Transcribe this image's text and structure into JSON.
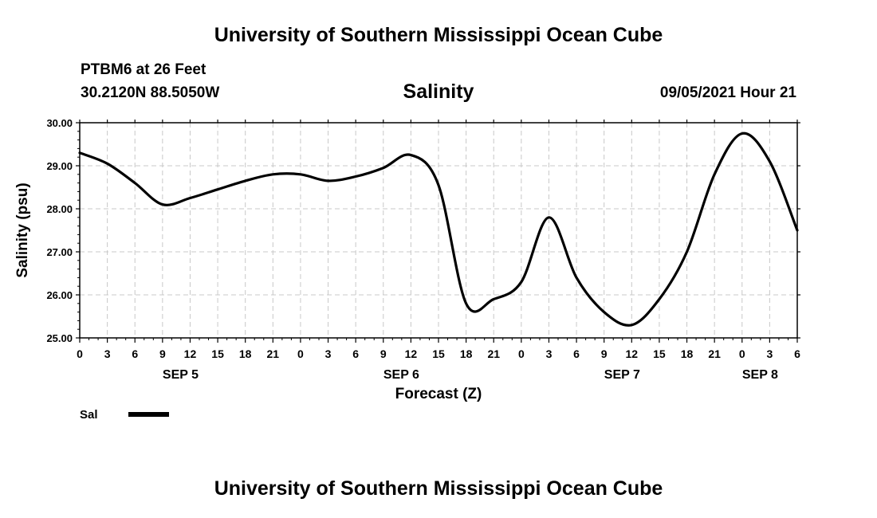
{
  "header": {
    "title_top": "University of Southern Mississippi Ocean Cube",
    "station": "PTBM6 at 26 Feet",
    "coordinates": "30.2120N  88.5050W",
    "datetime": "09/05/2021 Hour 21"
  },
  "footer": {
    "title_bottom": "University of Southern Mississippi Ocean Cube"
  },
  "chart_data": {
    "type": "line",
    "title": "Salinity",
    "xlabel": "Forecast (Z)",
    "ylabel": "Salinity (psu)",
    "ylim": [
      25.0,
      30.0
    ],
    "yticks": [
      "25.00",
      "26.00",
      "27.00",
      "28.00",
      "29.00",
      "30.00"
    ],
    "xlim": [
      0,
      78
    ],
    "xtick_labels": [
      "0",
      "3",
      "6",
      "9",
      "12",
      "15",
      "18",
      "21",
      "0",
      "3",
      "6",
      "9",
      "12",
      "15",
      "18",
      "21",
      "0",
      "3",
      "6",
      "9",
      "12",
      "15",
      "18",
      "21",
      "0",
      "3",
      "6"
    ],
    "day_labels": [
      {
        "label": "SEP 5",
        "hour": 12
      },
      {
        "label": "SEP 6",
        "hour": 36
      },
      {
        "label": "SEP 7",
        "hour": 60
      },
      {
        "label": "SEP 8",
        "hour": 75
      }
    ],
    "grid": true,
    "legend": "bottom-left",
    "series": [
      {
        "name": "Sal",
        "color": "#000000",
        "x": [
          0,
          3,
          6,
          9,
          12,
          15,
          18,
          21,
          24,
          27,
          30,
          33,
          36,
          39,
          42,
          45,
          48,
          51,
          54,
          57,
          60,
          63,
          66,
          69,
          72,
          75,
          78
        ],
        "values": [
          29.3,
          29.05,
          28.6,
          28.1,
          28.25,
          28.45,
          28.65,
          28.8,
          28.8,
          28.65,
          28.75,
          28.95,
          29.25,
          28.55,
          25.8,
          25.9,
          26.3,
          27.8,
          26.4,
          25.6,
          25.3,
          25.9,
          27.0,
          28.8,
          29.75,
          29.1,
          27.5
        ]
      }
    ]
  }
}
